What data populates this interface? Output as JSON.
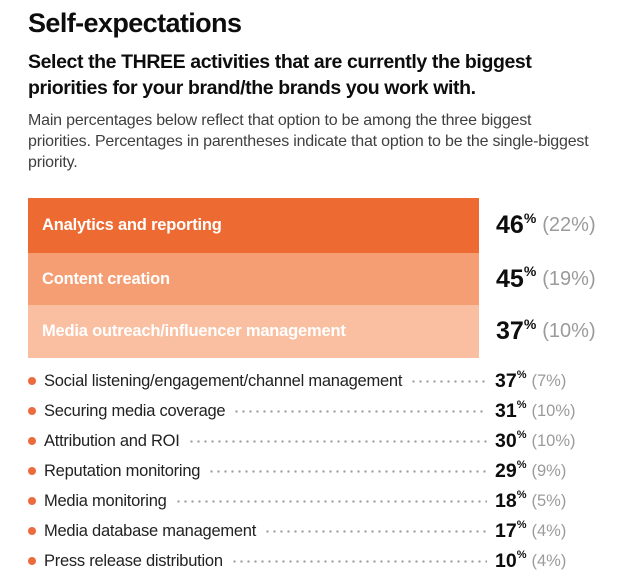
{
  "labels": {
    "percent_sign": "%"
  },
  "header": {
    "title": "Self-expectations",
    "subtitle": "Select the THREE activities that are currently the biggest priorities for your brand/the brands you work with.",
    "description": "Main percentages below reflect that option to be among the three biggest priorities. Percentages in parentheses indicate that option to be the single-biggest priority."
  },
  "colors": {
    "bar_top": "#ED6B33",
    "bar_middle": "#F59E74",
    "bar_bottom": "#F9BFA0",
    "bullet": "#ED6A3C",
    "secondary_value": "#9B9B9B",
    "body_text": "#3F3F3F"
  },
  "chart_data": {
    "type": "bar",
    "title": "Self-expectations",
    "question": "Select the THREE activities that are currently the biggest priorities for your brand/the brands you work with.",
    "note": "Main percentages below reflect that option to be among the three biggest priorities. Percentages in parentheses indicate that option to be the single-biggest priority.",
    "unit": "%",
    "legend_position": "none",
    "top_bars": [
      {
        "label": "Analytics and reporting",
        "value": 46,
        "paren": "(22%)",
        "single_biggest": 22,
        "color": "#ED6B33"
      },
      {
        "label": "Content creation",
        "value": 45,
        "paren": "(19%)",
        "single_biggest": 19,
        "color": "#F59E74"
      },
      {
        "label": "Media outreach/influencer management",
        "value": 37,
        "paren": "(10%)",
        "single_biggest": 10,
        "color": "#F9BFA0"
      }
    ],
    "list_items": [
      {
        "label": "Social listening/engagement/channel management",
        "value": 37,
        "paren": "(7%)",
        "single_biggest": 7
      },
      {
        "label": "Securing media coverage",
        "value": 31,
        "paren": "(10%)",
        "single_biggest": 10
      },
      {
        "label": "Attribution and ROI",
        "value": 30,
        "paren": "(10%)",
        "single_biggest": 10
      },
      {
        "label": "Reputation monitoring",
        "value": 29,
        "paren": "(9%)",
        "single_biggest": 9
      },
      {
        "label": "Media monitoring",
        "value": 18,
        "paren": "(5%)",
        "single_biggest": 5
      },
      {
        "label": "Media database management",
        "value": 17,
        "paren": "(4%)",
        "single_biggest": 4
      },
      {
        "label": "Press release distribution",
        "value": 10,
        "paren": "(4%)",
        "single_biggest": 4
      }
    ]
  }
}
